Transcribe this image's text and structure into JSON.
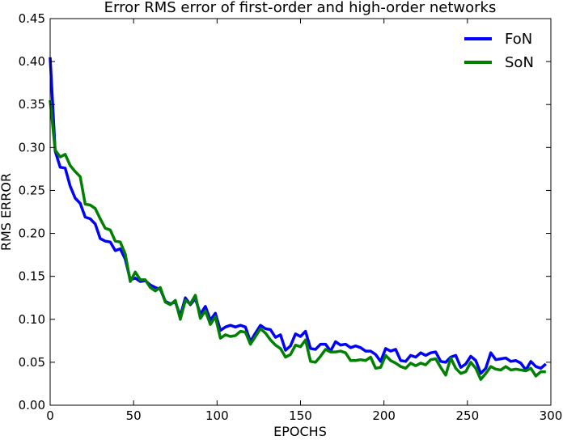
{
  "chart_data": {
    "type": "line",
    "title": "Error RMS error of first-order and high-order networks",
    "xlabel": "EPOCHS",
    "ylabel": "RMS ERROR",
    "xlim": [
      0,
      300
    ],
    "ylim": [
      0,
      0.45
    ],
    "xticks": [
      0,
      50,
      100,
      150,
      200,
      250,
      300
    ],
    "xtick_labels": [
      "0",
      "50",
      "100",
      "150",
      "200",
      "250",
      "300"
    ],
    "yticks": [
      0,
      0.05,
      0.1,
      0.15,
      0.2,
      0.25,
      0.3,
      0.35,
      0.4,
      0.45
    ],
    "ytick_labels": [
      "0.00",
      "0.05",
      "0.10",
      "0.15",
      "0.20",
      "0.25",
      "0.30",
      "0.35",
      "0.40",
      "0.45"
    ],
    "grid": false,
    "legend_position": "top-right",
    "series": [
      {
        "name": "FoN",
        "color": "#0000ff",
        "x": [
          0,
          3,
          6,
          9,
          12,
          15,
          18,
          21,
          24,
          27,
          30,
          33,
          36,
          39,
          42,
          45,
          48,
          51,
          54,
          57,
          60,
          63,
          66,
          69,
          72,
          75,
          78,
          81,
          84,
          87,
          90,
          93,
          96,
          99,
          102,
          105,
          108,
          111,
          114,
          117,
          120,
          123,
          126,
          129,
          132,
          135,
          138,
          141,
          144,
          147,
          150,
          153,
          156,
          159,
          162,
          165,
          168,
          171,
          174,
          177,
          180,
          183,
          186,
          189,
          192,
          195,
          198,
          201,
          204,
          207,
          210,
          213,
          216,
          219,
          222,
          225,
          228,
          231,
          234,
          237,
          240,
          243,
          246,
          249,
          252,
          255,
          258,
          261,
          264,
          267,
          270,
          273,
          276,
          279,
          282,
          285,
          288,
          291,
          294,
          297
        ],
        "y": [
          0.405,
          0.296,
          0.277,
          0.276,
          0.255,
          0.241,
          0.235,
          0.219,
          0.217,
          0.211,
          0.194,
          0.191,
          0.19,
          0.18,
          0.182,
          0.17,
          0.146,
          0.148,
          0.144,
          0.145,
          0.14,
          0.137,
          0.135,
          0.121,
          0.118,
          0.12,
          0.104,
          0.125,
          0.117,
          0.124,
          0.106,
          0.115,
          0.099,
          0.107,
          0.087,
          0.091,
          0.093,
          0.091,
          0.093,
          0.091,
          0.074,
          0.084,
          0.093,
          0.089,
          0.088,
          0.079,
          0.082,
          0.064,
          0.069,
          0.083,
          0.08,
          0.086,
          0.066,
          0.065,
          0.071,
          0.071,
          0.063,
          0.074,
          0.07,
          0.071,
          0.067,
          0.069,
          0.067,
          0.063,
          0.063,
          0.059,
          0.051,
          0.066,
          0.063,
          0.065,
          0.052,
          0.051,
          0.058,
          0.056,
          0.061,
          0.058,
          0.061,
          0.062,
          0.051,
          0.05,
          0.056,
          0.058,
          0.044,
          0.048,
          0.057,
          0.052,
          0.037,
          0.043,
          0.061,
          0.053,
          0.054,
          0.055,
          0.051,
          0.052,
          0.049,
          0.041,
          0.051,
          0.045,
          0.043,
          0.048
        ]
      },
      {
        "name": "SoN",
        "color": "#008000",
        "x": [
          0,
          3,
          6,
          9,
          12,
          15,
          18,
          21,
          24,
          27,
          30,
          33,
          36,
          39,
          42,
          45,
          48,
          51,
          54,
          57,
          60,
          63,
          66,
          69,
          72,
          75,
          78,
          81,
          84,
          87,
          90,
          93,
          96,
          99,
          102,
          105,
          108,
          111,
          114,
          117,
          120,
          123,
          126,
          129,
          132,
          135,
          138,
          141,
          144,
          147,
          150,
          153,
          156,
          159,
          162,
          165,
          168,
          171,
          174,
          177,
          180,
          183,
          186,
          189,
          192,
          195,
          198,
          201,
          204,
          207,
          210,
          213,
          216,
          219,
          222,
          225,
          228,
          231,
          234,
          237,
          240,
          243,
          246,
          249,
          252,
          255,
          258,
          261,
          264,
          267,
          270,
          273,
          276,
          279,
          282,
          285,
          288,
          291,
          294,
          297
        ],
        "y": [
          0.355,
          0.297,
          0.289,
          0.292,
          0.279,
          0.272,
          0.266,
          0.234,
          0.233,
          0.229,
          0.217,
          0.206,
          0.204,
          0.191,
          0.19,
          0.176,
          0.144,
          0.155,
          0.146,
          0.146,
          0.137,
          0.133,
          0.137,
          0.12,
          0.117,
          0.122,
          0.1,
          0.122,
          0.118,
          0.128,
          0.101,
          0.11,
          0.094,
          0.103,
          0.078,
          0.082,
          0.08,
          0.081,
          0.086,
          0.085,
          0.071,
          0.08,
          0.089,
          0.084,
          0.076,
          0.07,
          0.066,
          0.056,
          0.059,
          0.07,
          0.068,
          0.076,
          0.051,
          0.05,
          0.057,
          0.065,
          0.062,
          0.062,
          0.063,
          0.061,
          0.052,
          0.052,
          0.053,
          0.052,
          0.056,
          0.043,
          0.044,
          0.058,
          0.052,
          0.049,
          0.045,
          0.043,
          0.049,
          0.046,
          0.049,
          0.047,
          0.053,
          0.054,
          0.044,
          0.035,
          0.055,
          0.043,
          0.037,
          0.039,
          0.05,
          0.043,
          0.03,
          0.037,
          0.045,
          0.042,
          0.041,
          0.045,
          0.041,
          0.042,
          0.041,
          0.04,
          0.043,
          0.034,
          0.039,
          0.039
        ]
      }
    ]
  }
}
